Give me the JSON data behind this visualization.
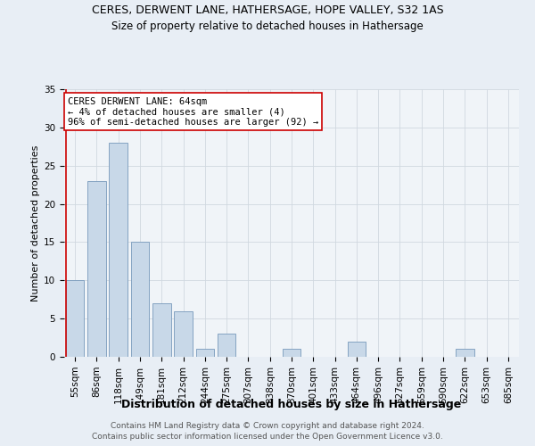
{
  "title": "CERES, DERWENT LANE, HATHERSAGE, HOPE VALLEY, S32 1AS",
  "subtitle": "Size of property relative to detached houses in Hathersage",
  "xlabel": "Distribution of detached houses by size in Hathersage",
  "ylabel": "Number of detached properties",
  "footnote1": "Contains HM Land Registry data © Crown copyright and database right 2024.",
  "footnote2": "Contains public sector information licensed under the Open Government Licence v3.0.",
  "categories": [
    "55sqm",
    "86sqm",
    "118sqm",
    "149sqm",
    "181sqm",
    "212sqm",
    "244sqm",
    "275sqm",
    "307sqm",
    "338sqm",
    "370sqm",
    "401sqm",
    "433sqm",
    "464sqm",
    "496sqm",
    "527sqm",
    "559sqm",
    "590sqm",
    "622sqm",
    "653sqm",
    "685sqm"
  ],
  "values": [
    10,
    23,
    28,
    15,
    7,
    6,
    1,
    3,
    0,
    0,
    1,
    0,
    0,
    2,
    0,
    0,
    0,
    0,
    1,
    0,
    0
  ],
  "bar_color": "#c8d8e8",
  "bar_edge_color": "#7799bb",
  "annotation_text": "CERES DERWENT LANE: 64sqm\n← 4% of detached houses are smaller (4)\n96% of semi-detached houses are larger (92) →",
  "annotation_box_color": "#ffffff",
  "annotation_box_edge": "#cc0000",
  "subject_line_color": "#cc0000",
  "subject_bar_index": 0,
  "ylim": [
    0,
    35
  ],
  "yticks": [
    0,
    5,
    10,
    15,
    20,
    25,
    30,
    35
  ],
  "background_color": "#e8eef5",
  "plot_background_color": "#f0f4f8",
  "grid_color": "#d0d8e0",
  "title_fontsize": 9,
  "subtitle_fontsize": 8.5,
  "xlabel_fontsize": 9,
  "ylabel_fontsize": 8,
  "tick_fontsize": 7.5,
  "annotation_fontsize": 7.5,
  "footnote_fontsize": 6.5
}
